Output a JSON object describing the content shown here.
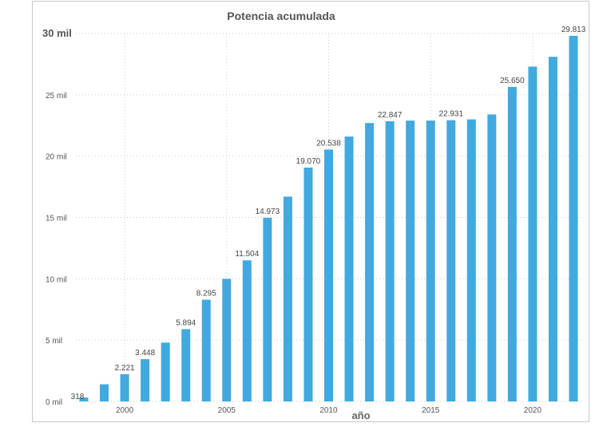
{
  "chart_data": {
    "type": "bar",
    "title": "Potencia acumulada",
    "xlabel": "año",
    "ylabel": "",
    "ylim": [
      0,
      30000
    ],
    "grid": true,
    "color": "#41A9DF",
    "y_ticks": [
      {
        "value": 0,
        "label": "0 mil"
      },
      {
        "value": 5000,
        "label": "5 mil"
      },
      {
        "value": 10000,
        "label": "10 mil"
      },
      {
        "value": 15000,
        "label": "15 mil"
      },
      {
        "value": 20000,
        "label": "20 mil"
      },
      {
        "value": 25000,
        "label": "25 mil"
      },
      {
        "value": 30000,
        "label": "30 mil"
      }
    ],
    "x_ticks": [
      2000,
      2005,
      2010,
      2015,
      2020
    ],
    "x": [
      1998,
      1999,
      2000,
      2001,
      2002,
      2003,
      2004,
      2005,
      2006,
      2007,
      2008,
      2009,
      2010,
      2011,
      2012,
      2013,
      2014,
      2015,
      2016,
      2017,
      2018,
      2019,
      2020,
      2021,
      2022
    ],
    "values": [
      318,
      1400,
      2221,
      3448,
      4800,
      5894,
      8295,
      10000,
      11504,
      14973,
      16700,
      19070,
      20538,
      21600,
      22700,
      22847,
      22900,
      22900,
      22931,
      23000,
      23400,
      25650,
      27300,
      28100,
      29813
    ],
    "labels": [
      "318",
      "",
      "2.221",
      "3.448",
      "",
      "5.894",
      "8.295",
      "",
      "11.504",
      "14.973",
      "",
      "19.070",
      "20.538",
      "",
      "",
      "22.847",
      "",
      "",
      "22.931",
      "",
      "",
      "25.650",
      "",
      "",
      "29.813"
    ]
  }
}
